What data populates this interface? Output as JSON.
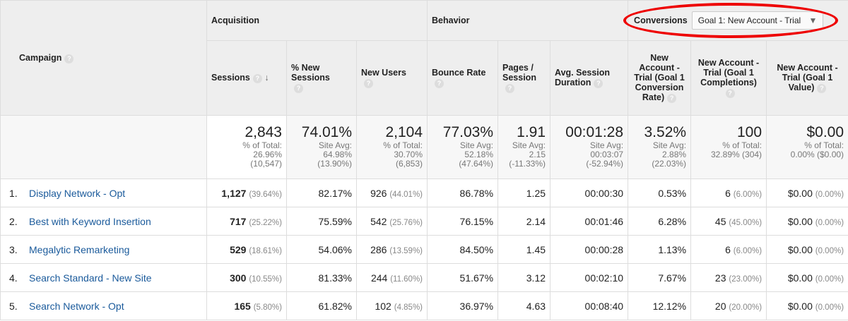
{
  "groups": {
    "acquisition": "Acquisition",
    "behavior": "Behavior",
    "conversions": "Conversions",
    "goal_select": "Goal 1: New Account - Trial"
  },
  "columns": {
    "campaign": "Campaign",
    "sessions": "Sessions",
    "new_sessions": "% New Sessions",
    "new_users": "New Users",
    "bounce": "Bounce Rate",
    "pages": "Pages / Session",
    "duration": "Avg. Session Duration",
    "conv_rate": "New Account - Trial (Goal 1 Conversion Rate)",
    "completions": "New Account - Trial (Goal 1 Completions)",
    "value": "New Account - Trial (Goal 1 Value)"
  },
  "totals": [
    {
      "big": "2,843",
      "l1": "% of Total:",
      "l2": "26.96%",
      "l3": "(10,547)"
    },
    {
      "big": "74.01%",
      "l1": "Site Avg:",
      "l2": "64.98%",
      "l3": "(13.90%)"
    },
    {
      "big": "2,104",
      "l1": "% of Total:",
      "l2": "30.70%",
      "l3": "(6,853)"
    },
    {
      "big": "77.03%",
      "l1": "Site Avg:",
      "l2": "52.18%",
      "l3": "(47.64%)"
    },
    {
      "big": "1.91",
      "l1": "Site Avg:",
      "l2": "2.15",
      "l3": "(-11.33%)"
    },
    {
      "big": "00:01:28",
      "l1": "Site Avg:",
      "l2": "00:03:07",
      "l3": "(-52.94%)"
    },
    {
      "big": "3.52%",
      "l1": "Site Avg:",
      "l2": "2.88%",
      "l3": "(22.03%)"
    },
    {
      "big": "100",
      "l1": "% of Total:",
      "l2": "32.89% (304)",
      "l3": ""
    },
    {
      "big": "$0.00",
      "l1": "% of Total:",
      "l2": "0.00% ($0.00)",
      "l3": ""
    }
  ],
  "rows": [
    {
      "i": "1.",
      "name": "Display Network - Opt",
      "s": "1,127",
      "sp": "(39.64%)",
      "ns": "82.17%",
      "nu": "926",
      "nup": "(44.01%)",
      "b": "86.78%",
      "p": "1.25",
      "d": "00:00:30",
      "cr": "0.53%",
      "c": "6",
      "cp": "(6.00%)",
      "v": "$0.00",
      "vp": "(0.00%)"
    },
    {
      "i": "2.",
      "name": "Best with Keyword Insertion",
      "s": "717",
      "sp": "(25.22%)",
      "ns": "75.59%",
      "nu": "542",
      "nup": "(25.76%)",
      "b": "76.15%",
      "p": "2.14",
      "d": "00:01:46",
      "cr": "6.28%",
      "c": "45",
      "cp": "(45.00%)",
      "v": "$0.00",
      "vp": "(0.00%)"
    },
    {
      "i": "3.",
      "name": "Megalytic Remarketing",
      "s": "529",
      "sp": "(18.61%)",
      "ns": "54.06%",
      "nu": "286",
      "nup": "(13.59%)",
      "b": "84.50%",
      "p": "1.45",
      "d": "00:00:28",
      "cr": "1.13%",
      "c": "6",
      "cp": "(6.00%)",
      "v": "$0.00",
      "vp": "(0.00%)"
    },
    {
      "i": "4.",
      "name": "Search Standard - New Site",
      "s": "300",
      "sp": "(10.55%)",
      "ns": "81.33%",
      "nu": "244",
      "nup": "(11.60%)",
      "b": "51.67%",
      "p": "3.12",
      "d": "00:02:10",
      "cr": "7.67%",
      "c": "23",
      "cp": "(23.00%)",
      "v": "$0.00",
      "vp": "(0.00%)"
    },
    {
      "i": "5.",
      "name": "Search Network - Opt",
      "s": "165",
      "sp": "(5.80%)",
      "ns": "61.82%",
      "nu": "102",
      "nup": "(4.85%)",
      "b": "36.97%",
      "p": "4.63",
      "d": "00:08:40",
      "cr": "12.12%",
      "c": "20",
      "cp": "(20.00%)",
      "v": "$0.00",
      "vp": "(0.00%)"
    }
  ]
}
